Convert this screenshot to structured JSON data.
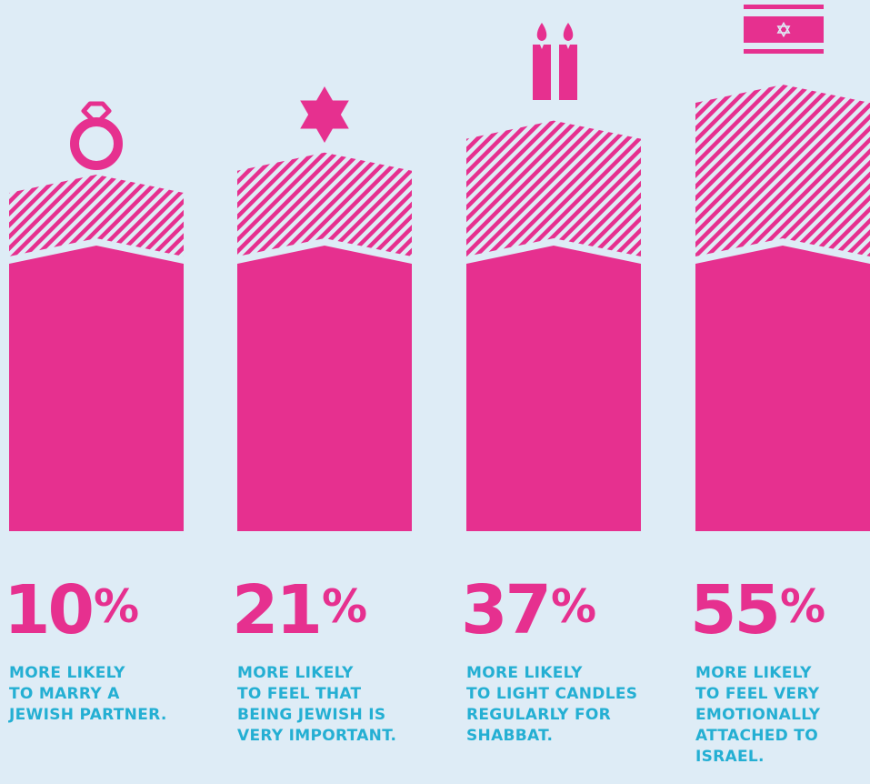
{
  "chart_data": {
    "type": "bar",
    "categories": [
      "MORE LIKELY TO MARRY A JEWISH PARTNER.",
      "MORE LIKELY TO FEEL THAT BEING JEWISH IS VERY IMPORTANT.",
      "MORE LIKELY TO LIGHT CANDLES REGULARLY FOR SHABBAT.",
      "MORE LIKELY TO FEEL VERY EMOTIONALLY ATTACHED TO ISRAEL."
    ],
    "values": [
      10,
      21,
      37,
      55
    ],
    "unit": "%",
    "value_labels": [
      "10",
      "21",
      "37",
      "55"
    ],
    "captions": [
      [
        "MORE LIKELY",
        "TO MARRY A",
        "JEWISH PARTNER."
      ],
      [
        "MORE LIKELY",
        "TO FEEL THAT",
        "BEING JEWISH IS",
        "VERY IMPORTANT."
      ],
      [
        "MORE LIKELY",
        "TO LIGHT CANDLES",
        "REGULARLY FOR",
        "SHABBAT."
      ],
      [
        "MORE LIKELY",
        "TO FEEL VERY",
        "EMOTIONALLY",
        "ATTACHED TO",
        "ISRAEL."
      ]
    ],
    "icons": [
      "ring-icon",
      "star-of-david-icon",
      "shabbat-candles-icon",
      "israel-flag-icon"
    ],
    "ylim": [
      0,
      55
    ],
    "grid": false,
    "legend": "none"
  },
  "colors": {
    "background": "#deecf6",
    "bar": "#e6308f",
    "stripe": "#e6308f",
    "caption": "#24afd3",
    "icon": "#e6308f"
  }
}
